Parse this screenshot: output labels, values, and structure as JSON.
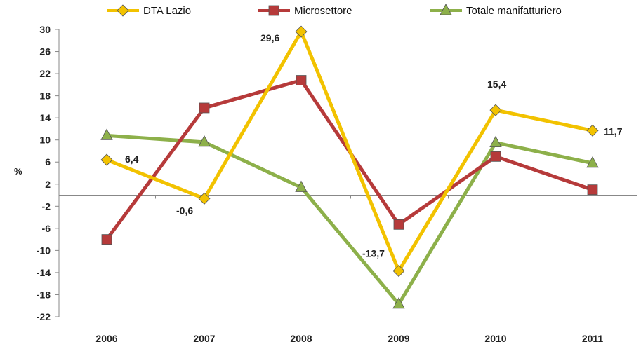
{
  "chart_data": {
    "type": "line",
    "categories": [
      "2006",
      "2007",
      "2008",
      "2009",
      "2010",
      "2011"
    ],
    "series": [
      {
        "name": "DTA Lazio",
        "values": [
          6.4,
          -0.6,
          29.6,
          -13.7,
          15.4,
          11.7
        ],
        "color": "#f2c200",
        "marker": "diamond"
      },
      {
        "name": "Microsettore",
        "values": [
          -8.0,
          15.8,
          20.8,
          -5.3,
          7.0,
          1.0
        ],
        "color": "#b63a3a",
        "marker": "square"
      },
      {
        "name": "Totale manifatturiero",
        "values": [
          10.8,
          9.6,
          1.4,
          -19.7,
          9.5,
          5.8
        ],
        "color": "#8db04a",
        "marker": "triangle"
      }
    ],
    "data_labels": [
      {
        "series": 0,
        "index": 0,
        "text": "6,4"
      },
      {
        "series": 0,
        "index": 1,
        "text": "-0,6"
      },
      {
        "series": 0,
        "index": 2,
        "text": "29,6"
      },
      {
        "series": 0,
        "index": 3,
        "text": "-13,7"
      },
      {
        "series": 0,
        "index": 4,
        "text": "15,4"
      },
      {
        "series": 0,
        "index": 5,
        "text": "11,7"
      }
    ],
    "ylabel": "%",
    "yticks": [
      "30",
      "26",
      "22",
      "18",
      "14",
      "10",
      "6",
      "2",
      "-2",
      "-6",
      "-10",
      "-14",
      "-18",
      "-22"
    ],
    "ylim": [
      -22,
      30
    ],
    "grid": false,
    "legend_position": "top"
  }
}
